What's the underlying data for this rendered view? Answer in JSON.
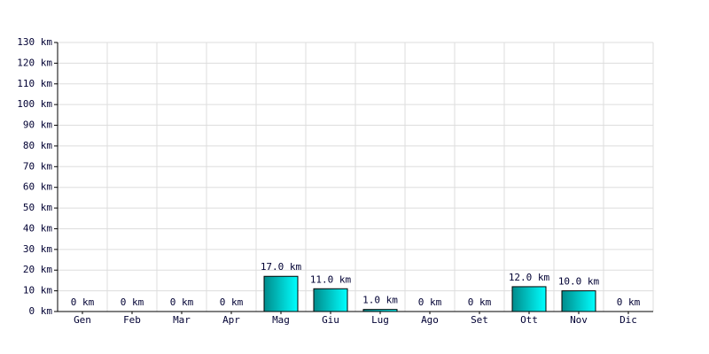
{
  "chart_data": {
    "type": "bar",
    "categories": [
      "Gen",
      "Feb",
      "Mar",
      "Apr",
      "Mag",
      "Giu",
      "Lug",
      "Ago",
      "Set",
      "Ott",
      "Nov",
      "Dic"
    ],
    "values": [
      0,
      0,
      0,
      0,
      17,
      11,
      1,
      0,
      0,
      12,
      10,
      0
    ],
    "value_labels": [
      "0 km",
      "0 km",
      "0 km",
      "0 km",
      "17.0 km",
      "11.0 km",
      "1.0 km",
      "0 km",
      "0 km",
      "12.0 km",
      "10.0 km",
      "0 km"
    ],
    "bar_gradient": [
      "#008b8b",
      "#00ffff"
    ],
    "ylim": [
      0,
      130
    ],
    "yticks": [
      {
        "value": 0,
        "label": "0 km"
      },
      {
        "value": 10,
        "label": "10 km"
      },
      {
        "value": 20,
        "label": "20 km"
      },
      {
        "value": 30,
        "label": "30 km"
      },
      {
        "value": 40,
        "label": "40 km"
      },
      {
        "value": 50,
        "label": "50 km"
      },
      {
        "value": 60,
        "label": "60 km"
      },
      {
        "value": 70,
        "label": "70 km"
      },
      {
        "value": 80,
        "label": "80 km"
      },
      {
        "value": 90,
        "label": "90 km"
      },
      {
        "value": 100,
        "label": "100 km"
      },
      {
        "value": 110,
        "label": "110 km"
      },
      {
        "value": 120,
        "label": "120 km"
      },
      {
        "value": 130,
        "label": "130 km"
      }
    ],
    "grid": true
  }
}
